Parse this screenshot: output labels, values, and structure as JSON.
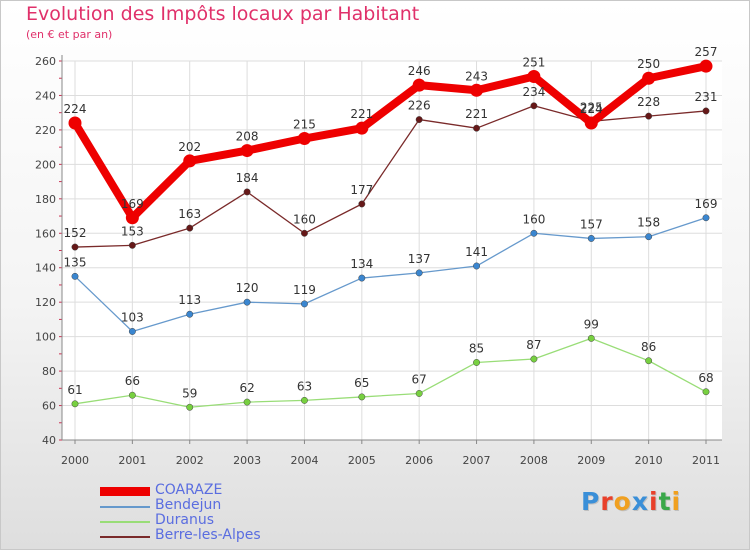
{
  "header": {
    "title": "Evolution des Impôts locaux par Habitant",
    "subtitle": "(en € et par an)"
  },
  "logo": {
    "text": "Proxiti",
    "colors": [
      "#3a8fd8",
      "#e8402a",
      "#f0a020",
      "#3a8fd8",
      "#e8402a",
      "#3aa84a",
      "#f0a020"
    ]
  },
  "chart_data": {
    "type": "line",
    "title": "Evolution des Impôts locaux par Habitant",
    "subtitle": "(en € et par an)",
    "xlabel": "",
    "ylabel": "",
    "ylim": [
      40,
      260
    ],
    "yticks": [
      40,
      60,
      80,
      100,
      120,
      140,
      160,
      180,
      200,
      220,
      240,
      260
    ],
    "grid": true,
    "legend_position": "bottom-left",
    "x": [
      "2000",
      "2001",
      "2002",
      "2003",
      "2004",
      "2005",
      "2006",
      "2007",
      "2008",
      "2009",
      "2010",
      "2011"
    ],
    "series": [
      {
        "name": "COARAZE",
        "color": "#ee0000",
        "marker_color": "#ee0000",
        "label_color": "#333333",
        "values": [
          224,
          169,
          202,
          208,
          215,
          221,
          246,
          243,
          251,
          224,
          250,
          257
        ],
        "emphasis": "thick"
      },
      {
        "name": "Bendejun",
        "color": "#6699cc",
        "marker_color": "#3a86d0",
        "label_color": "#333333",
        "values": [
          135,
          103,
          113,
          120,
          119,
          134,
          137,
          141,
          160,
          157,
          158,
          169
        ],
        "emphasis": "normal"
      },
      {
        "name": "Duranus",
        "color": "#99dd77",
        "marker_color": "#77d040",
        "label_color": "#333333",
        "values": [
          61,
          66,
          59,
          62,
          63,
          65,
          67,
          85,
          87,
          99,
          86,
          68
        ],
        "emphasis": "normal"
      },
      {
        "name": "Berre-les-Alpes",
        "color": "#7a2a2a",
        "marker_color": "#661818",
        "label_color": "#333333",
        "values": [
          152,
          153,
          163,
          184,
          160,
          177,
          226,
          221,
          234,
          225,
          228,
          231
        ],
        "emphasis": "normal"
      }
    ]
  }
}
